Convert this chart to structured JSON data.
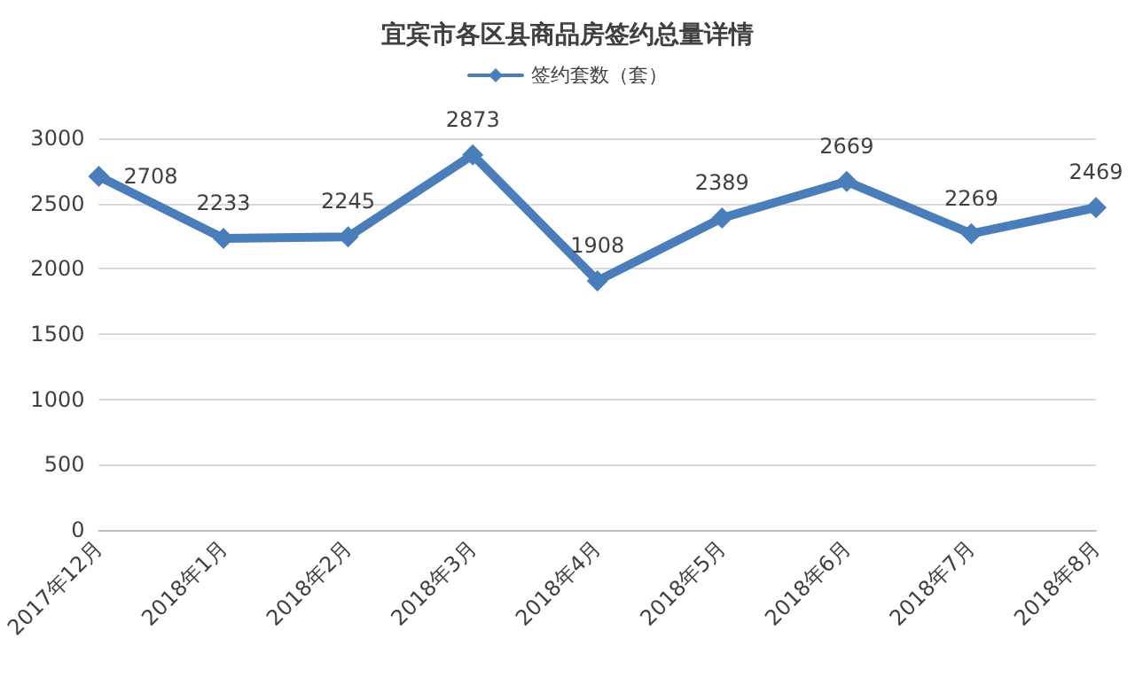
{
  "chart_data": {
    "type": "line",
    "title": "宜宾市各区县商品房签约总量详情",
    "categories": [
      "2017年12月",
      "2018年1月",
      "2018年2月",
      "2018年3月",
      "2018年4月",
      "2018年5月",
      "2018年6月",
      "2018年7月",
      "2018年8月"
    ],
    "series": [
      {
        "name": "签约套数（套）",
        "color": "#4a7ebb",
        "values": [
          2708,
          2233,
          2245,
          2873,
          1908,
          2389,
          2669,
          2269,
          2469
        ]
      }
    ],
    "ylim": [
      0,
      3000
    ],
    "yticks": [
      0,
      500,
      1000,
      1500,
      2000,
      2500,
      3000
    ],
    "grid": "y",
    "legend": "top",
    "marker": "diamond",
    "line_style": "solid",
    "data_labels": true
  }
}
